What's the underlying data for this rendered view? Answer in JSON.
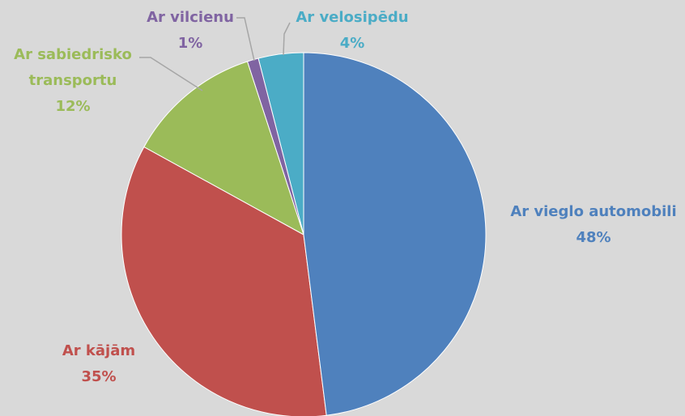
{
  "chart_data": {
    "type": "pie",
    "categories": [
      "Ar vieglo automobili",
      "Ar kājām",
      "Ar sabiedrisko transportu",
      "Ar vilcienu",
      "Ar velosipēdu"
    ],
    "values": [
      48,
      35,
      12,
      1,
      4
    ],
    "value_labels": [
      "48%",
      "35%",
      "12%",
      "1%",
      "4%"
    ],
    "colors": [
      "#4f81bd",
      "#c0504d",
      "#9bbb59",
      "#8064a2",
      "#4bacc6"
    ]
  }
}
